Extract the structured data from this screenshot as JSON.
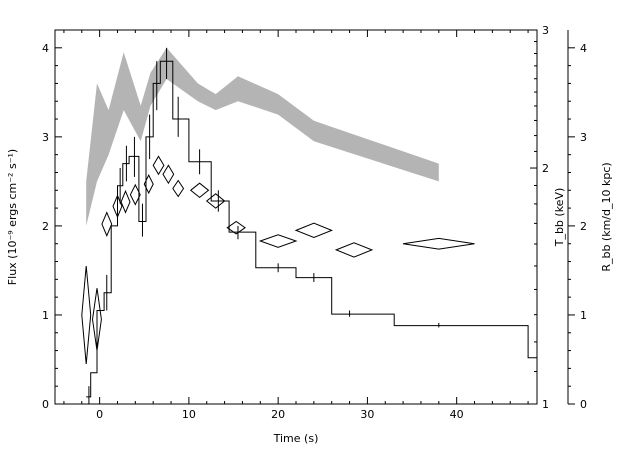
{
  "chart_data": {
    "type": "line",
    "xlabel": "Time (s)",
    "ylabel_left": "Flux (10⁻⁹ ergs cm⁻² s⁻¹)",
    "ylabel_right1": "T_bb (keV)",
    "ylabel_right2": "R_bb (km/d_10 kpc)",
    "xlim": [
      -5,
      49
    ],
    "ylim_flux": [
      0,
      4.2
    ],
    "ylim_tbb_log": [
      1,
      3
    ],
    "ylim_rbb": [
      0,
      4.2
    ],
    "x_ticks": [
      "0",
      "10",
      "20",
      "30",
      "40"
    ],
    "y_ticks_flux": [
      "0",
      "1",
      "2",
      "3",
      "4"
    ],
    "y_ticks_tbb": [
      "1",
      "2",
      "3"
    ],
    "y_ticks_rbb": [
      "0",
      "1",
      "2",
      "3",
      "4"
    ],
    "series": [
      {
        "mark": "step",
        "color": "#000000",
        "bins": [
          {
            "x0": -1.5,
            "x1": -1.0,
            "y": 0.08
          },
          {
            "x0": -1.0,
            "x1": -0.3,
            "y": 0.35
          },
          {
            "x0": -0.3,
            "x1": 0.5,
            "y": 1.05
          },
          {
            "x0": 0.5,
            "x1": 1.3,
            "y": 1.25
          },
          {
            "x0": 1.3,
            "x1": 2.0,
            "y": 2.0
          },
          {
            "x0": 2.0,
            "x1": 2.6,
            "y": 2.45
          },
          {
            "x0": 2.6,
            "x1": 3.3,
            "y": 2.7
          },
          {
            "x0": 3.3,
            "x1": 4.4,
            "y": 2.78
          },
          {
            "x0": 4.4,
            "x1": 5.2,
            "y": 2.05
          },
          {
            "x0": 5.2,
            "x1": 6.0,
            "y": 3.0
          },
          {
            "x0": 6.0,
            "x1": 6.8,
            "y": 3.6
          },
          {
            "x0": 6.8,
            "x1": 8.2,
            "y": 3.85
          },
          {
            "x0": 8.2,
            "x1": 10.0,
            "y": 3.2
          },
          {
            "x0": 10.0,
            "x1": 12.5,
            "y": 2.72
          },
          {
            "x0": 12.5,
            "x1": 14.5,
            "y": 2.28
          },
          {
            "x0": 14.5,
            "x1": 17.5,
            "y": 1.93
          },
          {
            "x0": 17.5,
            "x1": 22.0,
            "y": 1.53
          },
          {
            "x0": 22.0,
            "x1": 26.0,
            "y": 1.42
          },
          {
            "x0": 26.0,
            "x1": 33.0,
            "y": 1.01
          },
          {
            "x0": 33.0,
            "x1": 48.0,
            "y": 0.88
          },
          {
            "x0": 48.0,
            "x1": 49.0,
            "y": 0.52
          }
        ],
        "errors": [
          {
            "x": -1.2,
            "lo": 0.0,
            "hi": 0.2
          },
          {
            "x": 0.8,
            "lo": 1.05,
            "hi": 1.45
          },
          {
            "x": 2.3,
            "lo": 2.25,
            "hi": 2.65
          },
          {
            "x": 3.0,
            "lo": 2.5,
            "hi": 2.9
          },
          {
            "x": 3.9,
            "lo": 2.55,
            "hi": 3.0
          },
          {
            "x": 4.8,
            "lo": 1.88,
            "hi": 2.25
          },
          {
            "x": 5.6,
            "lo": 2.75,
            "hi": 3.25
          },
          {
            "x": 6.4,
            "lo": 3.3,
            "hi": 3.85
          },
          {
            "x": 7.5,
            "lo": 3.65,
            "hi": 4.0
          },
          {
            "x": 8.8,
            "lo": 3.0,
            "hi": 3.45
          },
          {
            "x": 11.2,
            "lo": 2.58,
            "hi": 2.86
          },
          {
            "x": 13.3,
            "lo": 2.16,
            "hi": 2.4
          },
          {
            "x": 15.5,
            "lo": 1.85,
            "hi": 2.0
          },
          {
            "x": 20.0,
            "lo": 1.48,
            "hi": 1.58
          },
          {
            "x": 24.0,
            "lo": 1.37,
            "hi": 1.47
          },
          {
            "x": 28.0,
            "lo": 0.98,
            "hi": 1.05
          },
          {
            "x": 38.0,
            "lo": 0.86,
            "hi": 0.91
          }
        ]
      },
      {
        "mark": "band",
        "color": "#b4b4b4",
        "points": [
          {
            "x": -1.5,
            "lo": 2.0,
            "hi": 2.5
          },
          {
            "x": -0.3,
            "lo": 2.5,
            "hi": 3.6
          },
          {
            "x": 1.0,
            "lo": 2.8,
            "hi": 3.3
          },
          {
            "x": 2.7,
            "lo": 3.3,
            "hi": 3.95
          },
          {
            "x": 4.6,
            "lo": 2.95,
            "hi": 3.35
          },
          {
            "x": 5.7,
            "lo": 3.35,
            "hi": 3.72
          },
          {
            "x": 7.5,
            "lo": 3.65,
            "hi": 4.0
          },
          {
            "x": 11.0,
            "lo": 3.4,
            "hi": 3.6
          },
          {
            "x": 13.0,
            "lo": 3.3,
            "hi": 3.48
          },
          {
            "x": 15.5,
            "lo": 3.4,
            "hi": 3.68
          },
          {
            "x": 20.0,
            "lo": 3.25,
            "hi": 3.48
          },
          {
            "x": 24.0,
            "lo": 2.95,
            "hi": 3.18
          },
          {
            "x": 38.0,
            "lo": 2.5,
            "hi": 2.7
          }
        ]
      },
      {
        "mark": "diamond",
        "color": "#000000",
        "points": [
          {
            "x": -1.5,
            "xerr": 0.5,
            "y": 1.0,
            "yerr": 0.55
          },
          {
            "x": -0.3,
            "xerr": 0.5,
            "y": 0.95,
            "yerr": 0.35
          },
          {
            "x": 0.8,
            "xerr": 0.55,
            "y": 2.02,
            "yerr": 0.13
          },
          {
            "x": 2.0,
            "xerr": 0.5,
            "y": 2.22,
            "yerr": 0.12
          },
          {
            "x": 2.9,
            "xerr": 0.5,
            "y": 2.27,
            "yerr": 0.12
          },
          {
            "x": 4.0,
            "xerr": 0.55,
            "y": 2.35,
            "yerr": 0.11
          },
          {
            "x": 5.5,
            "xerr": 0.5,
            "y": 2.47,
            "yerr": 0.1
          },
          {
            "x": 6.6,
            "xerr": 0.6,
            "y": 2.68,
            "yerr": 0.1
          },
          {
            "x": 7.7,
            "xerr": 0.6,
            "y": 2.58,
            "yerr": 0.1
          },
          {
            "x": 8.8,
            "xerr": 0.6,
            "y": 2.42,
            "yerr": 0.09
          },
          {
            "x": 11.2,
            "xerr": 1.0,
            "y": 2.4,
            "yerr": 0.08
          },
          {
            "x": 13.0,
            "xerr": 1.0,
            "y": 2.28,
            "yerr": 0.08
          },
          {
            "x": 15.3,
            "xerr": 1.0,
            "y": 1.98,
            "yerr": 0.07
          },
          {
            "x": 20.0,
            "xerr": 2.0,
            "y": 1.83,
            "yerr": 0.07
          },
          {
            "x": 24.0,
            "xerr": 2.0,
            "y": 1.95,
            "yerr": 0.08
          },
          {
            "x": 28.5,
            "xerr": 2.0,
            "y": 1.73,
            "yerr": 0.08
          },
          {
            "x": 38.0,
            "xerr": 4.0,
            "y": 1.8,
            "yerr": 0.06
          }
        ]
      }
    ]
  }
}
